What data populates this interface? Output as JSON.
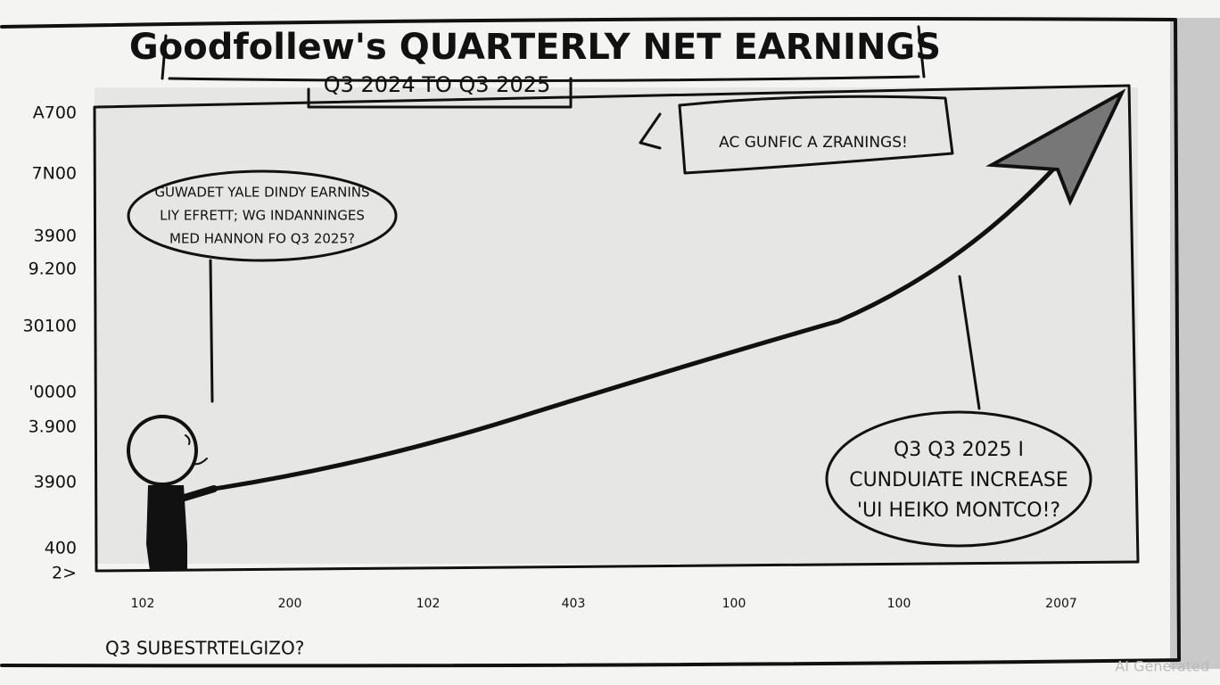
{
  "title": "Goodfollew's QUARTERLY NET EARNINGS",
  "subtitle": "Q3 2024 TO Q3 2025",
  "y_axis_labels": [
    "A700",
    "7N00",
    "3900",
    "9.200",
    "30100",
    "'0000",
    "3.900",
    "3900",
    "400",
    "2>"
  ],
  "x_axis_labels": [
    "102",
    "200",
    "102",
    "403",
    "100",
    "100",
    "2007"
  ],
  "callouts": [
    {
      "lines": [
        "GUWADET YALE DINDY EARNINS",
        "LIY EFRETT; WG INDANNINGES",
        "MED HANNON FO Q3 2025?"
      ]
    },
    {
      "lines": [
        "AC GUNFIC A ZRANINGS!"
      ]
    },
    {
      "lines": [
        "Q3 Q3 2025 I",
        "CUNDUIATE INCREASE",
        "'UI HEIKO MONTCO!?"
      ]
    }
  ],
  "footer": "Q3 SUBESTRTELGIZO?",
  "watermark": "AI Generated"
}
